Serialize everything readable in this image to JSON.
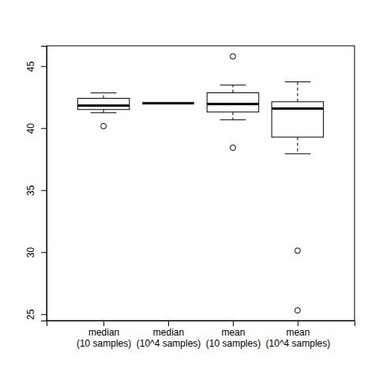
{
  "chart_data": {
    "type": "box",
    "categories": [
      "median\n(10 samples)",
      "median\n(10^4 samples)",
      "mean\n(10 samples)",
      "mean\n(10^4 samples)"
    ],
    "boxes": [
      {
        "whisker_low": 41.24,
        "q1": 41.5,
        "median": 41.82,
        "q3": 42.4,
        "whisker_high": 42.84,
        "outliers": [
          40.16
        ]
      },
      {
        "whisker_low": 42.0,
        "q1": 42.0,
        "median": 42.0,
        "q3": 42.0,
        "whisker_high": 42.0,
        "outliers": []
      },
      {
        "whisker_low": 40.67,
        "q1": 41.3,
        "median": 41.94,
        "q3": 42.85,
        "whisker_high": 43.47,
        "outliers": [
          45.78,
          38.42
        ]
      },
      {
        "whisker_low": 37.93,
        "q1": 39.27,
        "median": 41.57,
        "q3": 42.13,
        "whisker_high": 43.73,
        "outliers": [
          30.12,
          25.3
        ]
      }
    ],
    "color": "#000000",
    "ylim": [
      24.48,
      46.64
    ],
    "yticks": [
      25,
      30,
      35,
      40,
      45
    ]
  }
}
